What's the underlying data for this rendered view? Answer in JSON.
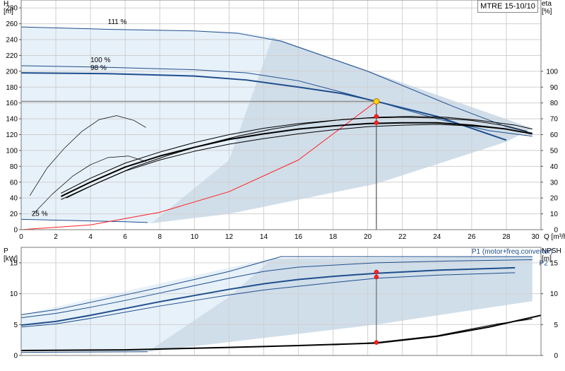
{
  "chart_data": [
    {
      "type": "line",
      "title": "MTRE 15-10/10",
      "xlabel": "Q [m³/h]",
      "ylabel": "H\n[m]",
      "y2label": "eta\n[%]",
      "xlim": [
        0,
        30
      ],
      "ylim": [
        0,
        290
      ],
      "y2lim": [
        0,
        145
      ],
      "xticks": [
        0,
        2,
        4,
        6,
        8,
        10,
        12,
        14,
        16,
        18,
        20,
        22,
        24,
        26,
        28,
        30
      ],
      "xtick_labels": [
        "0",
        "2",
        "4",
        "6",
        "8",
        "10",
        "12",
        "14",
        "16",
        "18",
        "20",
        "22",
        "24",
        "26",
        "28",
        "30"
      ],
      "yticks": [
        0,
        20,
        40,
        60,
        80,
        100,
        120,
        140,
        160,
        180,
        200,
        220,
        240,
        260,
        280
      ],
      "ytick_labels": [
        "0",
        "20",
        "40",
        "60",
        "80",
        "100",
        "120",
        "140",
        "160",
        "180",
        "200",
        "220",
        "240",
        "260",
        "280"
      ],
      "y2ticks": [
        0,
        10,
        20,
        30,
        40,
        50,
        60,
        70,
        80,
        90,
        100
      ],
      "y2tick_labels": [
        "0",
        "10",
        "20",
        "30",
        "40",
        "50",
        "60",
        "70",
        "80",
        "90",
        "100"
      ],
      "grid": true,
      "colors": {
        "operating_area": "#c8d8e6",
        "light_area": "#e4f0fa",
        "head_curve": "#1f4e8c",
        "system_curve": "#ff2020",
        "efficiency": "#000000",
        "duty_point": "#ffd700",
        "grid": "#d0d0d0"
      },
      "areas": [
        {
          "points": [
            [
              0,
              13
            ],
            [
              7,
              9
            ],
            [
              7.5,
              8
            ],
            [
              12,
              88
            ],
            [
              14.5,
              243
            ],
            [
              12.5,
              250
            ],
            [
              0,
              256
            ]
          ],
          "kind": "light"
        },
        {
          "points": [
            [
              7.5,
              8
            ],
            [
              12,
              20
            ],
            [
              20.5,
              58
            ],
            [
              28,
              111
            ],
            [
              29.5,
              128
            ],
            [
              14.5,
              243
            ],
            [
              12,
              88
            ]
          ],
          "kind": "dark"
        }
      ],
      "series": [
        {
          "name": "111 %",
          "x": [
            0,
            5,
            10,
            12.5,
            15,
            20,
            25,
            28,
            29.5
          ],
          "y": [
            256,
            253,
            251,
            248,
            238,
            200,
            155,
            130,
            122
          ],
          "color": "#1f4e8c",
          "width": 1
        },
        {
          "name": "100 %",
          "x": [
            0,
            5,
            10,
            13,
            16,
            20.5,
            24,
            27,
            29.5
          ],
          "y": [
            207,
            205,
            202,
            198,
            188,
            162,
            140,
            125,
            118
          ],
          "color": "#1f4e8c",
          "width": 1
        },
        {
          "name": "98 %",
          "x": [
            0,
            5,
            10,
            13,
            16,
            18.5,
            20.5,
            24,
            26,
            28
          ],
          "y": [
            198,
            197,
            194,
            189,
            180,
            172,
            162,
            143,
            128,
            113
          ],
          "color": "#1f4e8c",
          "width": 2
        },
        {
          "name": "25 %",
          "x": [
            0,
            2,
            4,
            6,
            7.3
          ],
          "y": [
            13,
            12,
            11,
            10,
            9
          ],
          "color": "#1f4e8c",
          "width": 1
        },
        {
          "name": "",
          "x": [
            0,
            4,
            8,
            12,
            16,
            20.5
          ],
          "y": [
            0,
            6,
            22,
            48,
            88,
            162
          ],
          "color": "#ff2020",
          "width": 1
        },
        {
          "name": "",
          "x": [
            2.3,
            4,
            6,
            8,
            10,
            12,
            14,
            16,
            18,
            20,
            22,
            24,
            26,
            28,
            29.5
          ],
          "y": [
            42,
            60,
            79,
            93,
            104,
            114,
            121,
            127,
            131,
            134,
            135,
            135,
            132,
            127,
            121
          ],
          "color": "#000000",
          "width": 2
        },
        {
          "name": "",
          "x": [
            2.3,
            4,
            6,
            8,
            10,
            12,
            14,
            16,
            18,
            20,
            22,
            24,
            26,
            28,
            29.2
          ],
          "y": [
            46,
            65,
            84,
            98,
            110,
            120,
            128,
            134,
            138,
            141,
            142,
            141,
            138,
            131,
            124
          ],
          "color": "#000000",
          "width": 1
        },
        {
          "name": "",
          "x": [
            2.3,
            4,
            6,
            8,
            10,
            12,
            14,
            16,
            18,
            20,
            22,
            24,
            26,
            28,
            29.2
          ],
          "y": [
            38,
            55,
            74,
            88,
            99,
            108,
            115,
            121,
            126,
            130,
            132,
            133,
            131,
            127,
            122
          ],
          "color": "#000000",
          "width": 1
        },
        {
          "name": "",
          "x": [
            2.6,
            4.5,
            6.5,
            8.5,
            10.5,
            12.5,
            14.5,
            16.5,
            18.5,
            20.5,
            22.5,
            24.5,
            26.5,
            28.5,
            29.5
          ],
          "y": [
            40,
            60,
            79,
            94,
            107,
            118,
            127,
            134,
            139,
            142,
            143,
            142,
            138,
            132,
            127
          ],
          "color": "#000000",
          "width": 1
        },
        {
          "name": "",
          "x": [
            0.5,
            1.5,
            2.5,
            3.5,
            4.5,
            5.5,
            6.5,
            7.2
          ],
          "y": [
            43,
            78,
            103,
            124,
            139,
            144,
            138,
            129
          ],
          "color": "#000000",
          "width": 0.7
        },
        {
          "name": "",
          "x": [
            0.7,
            1.8,
            3,
            4,
            5,
            6.2,
            7.2
          ],
          "y": [
            20,
            45,
            68,
            82,
            91,
            93,
            86
          ],
          "color": "#000000",
          "width": 0.7
        }
      ],
      "duty_point": {
        "x": 20.5,
        "head": 162
      },
      "efficiency_points": [
        {
          "x": 20.5,
          "value": 71.5
        },
        {
          "x": 20.5,
          "value": 67.5
        }
      ],
      "reference_line": {
        "y": 162
      },
      "curve_labels": [
        {
          "text": "111 %",
          "x": 5,
          "y": 256
        },
        {
          "text": "100 %",
          "x": 4,
          "y": 208
        },
        {
          "text": "98 %",
          "x": 4,
          "y": 198
        },
        {
          "text": "25 %",
          "x": 0.6,
          "y": 14
        }
      ]
    },
    {
      "type": "line",
      "xlabel": "",
      "ylabel": "P\n[kW]",
      "y2label": "NPSH\n[m]",
      "xlim": [
        0,
        30
      ],
      "ylim": [
        0,
        17.5
      ],
      "y2lim": [
        0,
        17.5
      ],
      "yticks": [
        0,
        5,
        10,
        15
      ],
      "ytick_labels": [
        "0",
        "5",
        "10",
        "15"
      ],
      "y2ticks": [
        0,
        5,
        10,
        15
      ],
      "y2tick_labels": [
        "0",
        "5",
        "10",
        "15"
      ],
      "grid": true,
      "areas": [
        {
          "points": [
            [
              0,
              0.8
            ],
            [
              7.3,
              0.6
            ],
            [
              12,
              9.5
            ],
            [
              14.5,
              15.7
            ],
            [
              12.5,
              14.5
            ],
            [
              0,
              6.6
            ]
          ],
          "kind": "light"
        },
        {
          "points": [
            [
              7.3,
              0.6
            ],
            [
              20.5,
              5
            ],
            [
              29.5,
              8.8
            ],
            [
              29.5,
              16
            ],
            [
              14.5,
              15.7
            ],
            [
              12,
              9.5
            ]
          ],
          "kind": "dark"
        }
      ],
      "series": [
        {
          "name": "P1 (motor+freq.converter)",
          "x": [
            0,
            2,
            4,
            6,
            8,
            10,
            12,
            13.5,
            15,
            18,
            22,
            26,
            29.5
          ],
          "y": [
            6.6,
            7.4,
            8.6,
            9.8,
            11,
            12.3,
            13.6,
            14.8,
            16,
            16,
            16,
            16,
            16
          ],
          "color": "#1f4e8c",
          "width": 1
        },
        {
          "name": "",
          "x": [
            0,
            2,
            4,
            6,
            8,
            10,
            12,
            14,
            16,
            20.5,
            25,
            29.5
          ],
          "y": [
            6.1,
            6.8,
            7.8,
            8.9,
            10.1,
            11.3,
            12.5,
            13.6,
            14.3,
            15,
            15.3,
            15.5
          ],
          "color": "#1f4e8c",
          "width": 1
        },
        {
          "name": "",
          "x": [
            0,
            2,
            4,
            6,
            8,
            10,
            12,
            14,
            16,
            18,
            20.5,
            24,
            28.5
          ],
          "y": [
            4.9,
            5.5,
            6.5,
            7.6,
            8.7,
            9.7,
            10.7,
            11.6,
            12.3,
            12.8,
            13.3,
            13.8,
            14.2
          ],
          "color": "#1f4e8c",
          "width": 2
        },
        {
          "name": "P2",
          "x": [
            0,
            2,
            4,
            6,
            8,
            10,
            12,
            14,
            16,
            18,
            20.5,
            24,
            28.5
          ],
          "y": [
            4.6,
            5.1,
            6,
            7,
            8,
            8.9,
            9.8,
            10.6,
            11.2,
            11.8,
            12.5,
            13,
            13.4
          ],
          "color": "#1f4e8c",
          "width": 1
        },
        {
          "name": "",
          "x": [
            0,
            6,
            12,
            16,
            20.5,
            24,
            27,
            30
          ],
          "y": [
            0.8,
            0.9,
            1.3,
            1.6,
            2,
            3.1,
            4.6,
            6.5
          ],
          "color": "#000000",
          "width": 2
        },
        {
          "name": "",
          "x": [
            18,
            20.5,
            24,
            26,
            27.5,
            29.5
          ],
          "y": [
            1.7,
            2.1,
            3.2,
            4.3,
            5.1,
            5.9
          ],
          "color": "#000000",
          "width": 1
        },
        {
          "name": "",
          "x": [
            0,
            3,
            7.3
          ],
          "y": [
            0.5,
            0.55,
            0.6
          ],
          "color": "#1f4e8c",
          "width": 1
        }
      ],
      "points": [
        {
          "x": 20.5,
          "value": 13.5,
          "color": "#ff2020"
        },
        {
          "x": 20.5,
          "value": 12.7,
          "color": "#ff2020"
        },
        {
          "x": 20.5,
          "value": 2.1,
          "color": "#ff2020"
        }
      ],
      "series_labels": [
        {
          "text": "P1 (motor+freq.converter)",
          "x": 26,
          "y": 16.8
        },
        {
          "text": "P2",
          "x": 29.9,
          "y": 14.9
        }
      ]
    }
  ]
}
